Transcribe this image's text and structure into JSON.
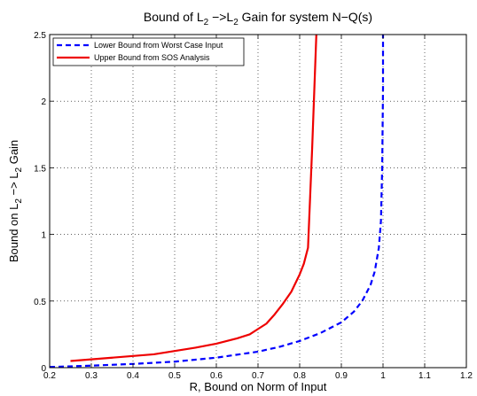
{
  "chart_data": {
    "type": "line",
    "title": {
      "main": "Bound of L",
      "sub1": "2",
      "mid": " −>L",
      "sub2": "2",
      "tail": " Gain for system N−Q(s)"
    },
    "xlabel": "R, Bound on Norm of Input",
    "ylabel": {
      "main": "Bound on L",
      "sub1": "2",
      "mid": " −> L",
      "sub2": "2",
      "tail": " Gain"
    },
    "xlim": [
      0.2,
      1.2
    ],
    "ylim": [
      0,
      2.5
    ],
    "xticks": [
      "0.2",
      "0.3",
      "0.4",
      "0.5",
      "0.6",
      "0.7",
      "0.8",
      "0.9",
      "1",
      "1.1",
      "1.2"
    ],
    "yticks": [
      "0",
      "0.5",
      "1",
      "1.5",
      "2",
      "2.5"
    ],
    "xtick_values": [
      0.2,
      0.3,
      0.4,
      0.5,
      0.6,
      0.7,
      0.8,
      0.9,
      1.0,
      1.1,
      1.2
    ],
    "ytick_values": [
      0,
      0.5,
      1,
      1.5,
      2,
      2.5
    ],
    "grid": true,
    "legend_position": "top-left",
    "series": [
      {
        "name": "Lower Bound from Worst Case Input",
        "color": "#0000ff",
        "style": "dashed",
        "x": [
          0.2,
          0.3,
          0.4,
          0.5,
          0.6,
          0.7,
          0.75,
          0.8,
          0.85,
          0.9,
          0.93,
          0.95,
          0.97,
          0.98,
          0.99,
          0.995,
          0.998,
          1.0,
          1.0
        ],
        "y": [
          0.005,
          0.015,
          0.028,
          0.045,
          0.075,
          0.12,
          0.155,
          0.2,
          0.26,
          0.34,
          0.42,
          0.5,
          0.62,
          0.72,
          0.9,
          1.1,
          1.5,
          2.1,
          2.5
        ]
      },
      {
        "name": "Upper Bound from SOS Analysis",
        "color": "#ee0000",
        "style": "solid",
        "x": [
          0.25,
          0.35,
          0.45,
          0.5,
          0.55,
          0.6,
          0.65,
          0.68,
          0.7,
          0.72,
          0.74,
          0.76,
          0.78,
          0.8,
          0.81,
          0.82,
          0.83,
          0.84
        ],
        "y": [
          0.05,
          0.075,
          0.1,
          0.125,
          0.15,
          0.18,
          0.22,
          0.25,
          0.29,
          0.33,
          0.4,
          0.48,
          0.57,
          0.7,
          0.78,
          0.9,
          1.65,
          2.5
        ]
      }
    ]
  }
}
